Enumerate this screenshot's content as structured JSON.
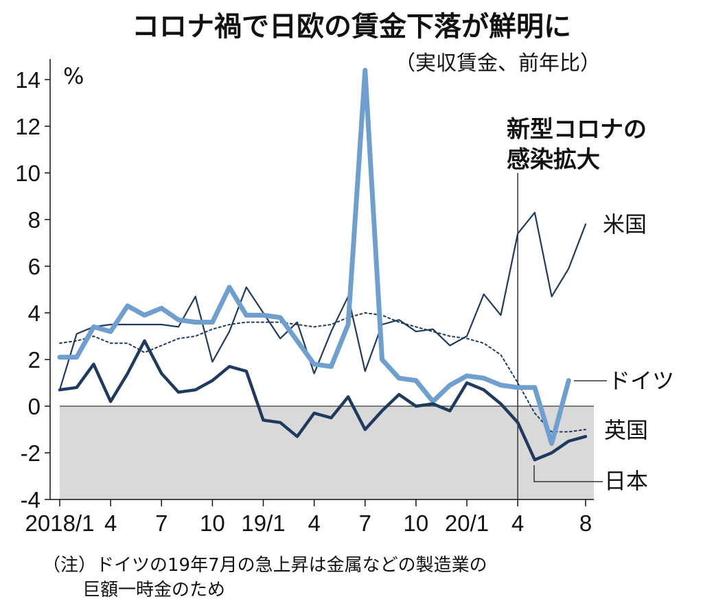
{
  "chart_data": {
    "type": "line",
    "title": "コロナ禍で日欧の賃金下落が鮮明に",
    "subtitle": "（実収賃金、前年比）",
    "y_unit": "%",
    "ylim": [
      -4,
      14
    ],
    "y_ticks": [
      "14",
      "12",
      "10",
      "8",
      "6",
      "4",
      "2",
      "0",
      "-2",
      "-4"
    ],
    "y_tick_values": [
      14,
      12,
      10,
      8,
      6,
      4,
      2,
      0,
      -2,
      -4
    ],
    "x_ticks": [
      "2018/1",
      "4",
      "7",
      "10",
      "19/1",
      "4",
      "7",
      "10",
      "20/1",
      "4",
      "8"
    ],
    "x_tick_index": [
      0,
      3,
      6,
      9,
      12,
      15,
      18,
      21,
      24,
      27,
      31
    ],
    "x_dates": [
      "2018-01",
      "2018-02",
      "2018-03",
      "2018-04",
      "2018-05",
      "2018-06",
      "2018-07",
      "2018-08",
      "2018-09",
      "2018-10",
      "2018-11",
      "2018-12",
      "2019-01",
      "2019-02",
      "2019-03",
      "2019-04",
      "2019-05",
      "2019-06",
      "2019-07",
      "2019-08",
      "2019-09",
      "2019-10",
      "2019-11",
      "2019-12",
      "2020-01",
      "2020-02",
      "2020-03",
      "2020-04",
      "2020-05",
      "2020-06",
      "2020-07",
      "2020-08"
    ],
    "grid": false,
    "shaded_negative_region": true,
    "annotation": {
      "line1": "新型コロナの",
      "line2": "感染拡大",
      "x_index": 27
    },
    "series": [
      {
        "name": "米国",
        "style": "thin-dark",
        "color": "#1f3a5f",
        "values": [
          0.7,
          3.1,
          3.4,
          3.5,
          3.5,
          3.5,
          3.5,
          3.4,
          4.7,
          1.9,
          3.2,
          5.1,
          4.0,
          2.9,
          3.6,
          1.4,
          3.2,
          4.7,
          1.5,
          3.5,
          3.7,
          3.2,
          3.3,
          2.6,
          3.0,
          4.8,
          3.9,
          7.4,
          8.3,
          4.7,
          5.9,
          7.8
        ]
      },
      {
        "name": "ドイツ",
        "style": "thick-light",
        "color": "#6f9fce",
        "values": [
          2.1,
          2.1,
          3.4,
          3.2,
          4.3,
          3.9,
          4.2,
          3.7,
          3.6,
          3.6,
          5.1,
          3.9,
          3.9,
          3.8,
          2.8,
          1.8,
          1.7,
          3.5,
          14.4,
          2.0,
          1.2,
          1.1,
          0.2,
          0.9,
          1.3,
          1.2,
          0.9,
          0.8,
          0.8,
          -1.6,
          1.1,
          null
        ]
      },
      {
        "name": "英国",
        "style": "dotted",
        "color": "#1f3a5f",
        "values": [
          2.7,
          2.8,
          3.0,
          2.7,
          2.7,
          2.3,
          2.6,
          2.9,
          3.0,
          3.3,
          3.5,
          3.6,
          3.6,
          3.6,
          3.5,
          3.4,
          3.5,
          3.8,
          4.0,
          3.9,
          3.6,
          3.4,
          3.2,
          3.0,
          2.9,
          2.7,
          2.2,
          1.0,
          -0.3,
          -1.1,
          -1.1,
          -1.0
        ]
      },
      {
        "name": "日本",
        "style": "thick-dark",
        "color": "#1f3a5f",
        "values": [
          0.7,
          0.8,
          1.8,
          0.2,
          1.4,
          2.8,
          1.4,
          0.6,
          0.7,
          1.1,
          1.7,
          1.5,
          -0.6,
          -0.7,
          -1.3,
          -0.3,
          -0.5,
          0.4,
          -1.0,
          -0.2,
          0.5,
          0.0,
          0.1,
          -0.2,
          1.0,
          0.7,
          0.1,
          -0.7,
          -2.3,
          -2.0,
          -1.5,
          -1.3
        ]
      }
    ],
    "note_line1": "（注）ドイツの19年7月の急上昇は金属などの製造業の",
    "note_line2": "巨額一時金のため"
  }
}
